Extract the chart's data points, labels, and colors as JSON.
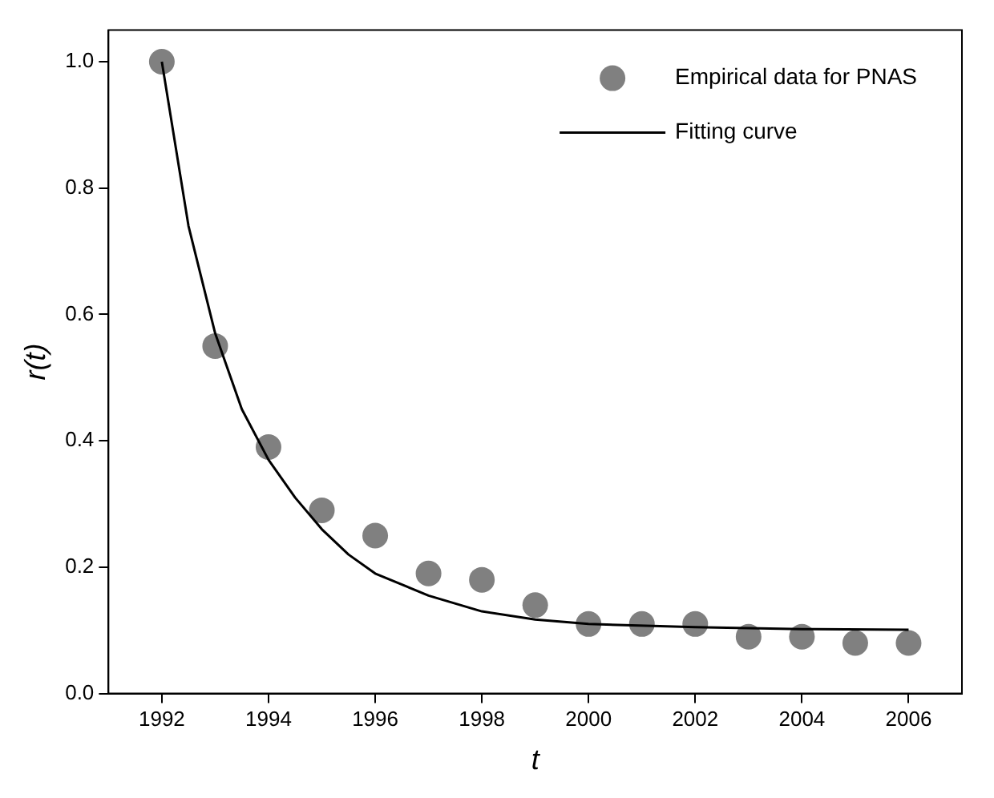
{
  "chart_data": {
    "type": "scatter",
    "xlabel": "t",
    "ylabel": "r(t)",
    "xlim": [
      1991,
      2007
    ],
    "xticks": [
      1992,
      1994,
      1996,
      1998,
      2000,
      2002,
      2004,
      2006
    ],
    "ylim": [
      0,
      1.05
    ],
    "yticks": [
      {
        "value": 0,
        "label": "0.0"
      },
      {
        "value": 0.2,
        "label": "0.2"
      },
      {
        "value": 0.4,
        "label": "0.4"
      },
      {
        "value": 0.6,
        "label": "0.6"
      },
      {
        "value": 0.8,
        "label": "0.8"
      },
      {
        "value": 1,
        "label": "1.0"
      }
    ],
    "grid": false,
    "legend": "top right",
    "series": [
      {
        "name": "Empirical data for PNAS",
        "color": "#808080",
        "marker": "circle",
        "x": [
          1992,
          1993,
          1994,
          1995,
          1996,
          1997,
          1998,
          1999,
          2000,
          2001,
          2002,
          2003,
          2004,
          2005,
          2006
        ],
        "values": [
          1.0,
          0.55,
          0.39,
          0.29,
          0.25,
          0.19,
          0.18,
          0.14,
          0.11,
          0.11,
          0.11,
          0.09,
          0.09,
          0.08,
          0.08
        ]
      },
      {
        "name": "Fitting curve",
        "type": "line",
        "color": "#000000",
        "marker": "none",
        "line_style": "solid",
        "x": [
          1992,
          1992.5,
          1993,
          1993.5,
          1994,
          1994.5,
          1995,
          1995.5,
          1996,
          1997,
          1998,
          1999,
          2000,
          2002,
          2004,
          2006
        ],
        "values": [
          1.0,
          0.74,
          0.57,
          0.45,
          0.37,
          0.31,
          0.26,
          0.22,
          0.19,
          0.155,
          0.13,
          0.117,
          0.11,
          0.105,
          0.102,
          0.101
        ]
      }
    ]
  }
}
